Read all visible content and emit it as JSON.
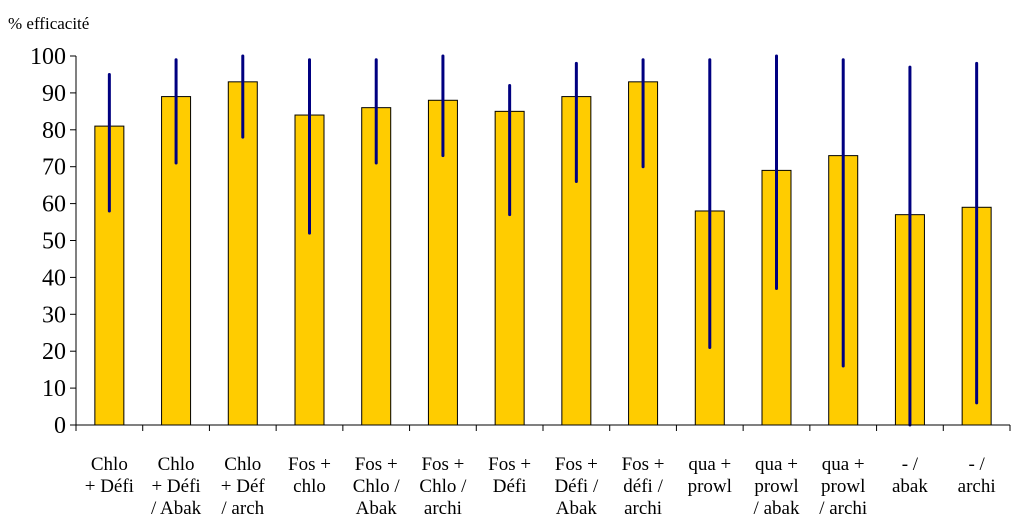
{
  "chart_data": {
    "type": "bar",
    "title": "",
    "xlabel": "",
    "ylabel": "% efficacité",
    "ylim": [
      0,
      100
    ],
    "yticks": [
      0,
      10,
      20,
      30,
      40,
      50,
      60,
      70,
      80,
      90,
      100
    ],
    "grid": false,
    "legend": "none",
    "categories": [
      [
        "Chlo",
        "+ Défi"
      ],
      [
        "Chlo",
        "+ Défi",
        "/ Abak"
      ],
      [
        "Chlo",
        "+ Déf",
        "/ arch"
      ],
      [
        "Fos +",
        "chlo"
      ],
      [
        "Fos +",
        "Chlo /",
        "Abak"
      ],
      [
        "Fos +",
        "Chlo /",
        "archi"
      ],
      [
        "Fos +",
        "Défi"
      ],
      [
        "Fos +",
        "Défi /",
        "Abak"
      ],
      [
        "Fos +",
        "défi /",
        "archi"
      ],
      [
        "qua +",
        "prowl"
      ],
      [
        "qua +",
        "prowl",
        "/ abak"
      ],
      [
        "qua +",
        "prowl",
        "/ archi"
      ],
      [
        "- /",
        "abak"
      ],
      [
        "- /",
        "archi"
      ]
    ],
    "values": [
      81,
      89,
      93,
      84,
      86,
      88,
      85,
      89,
      93,
      58,
      69,
      73,
      57,
      59
    ],
    "error_low": [
      58,
      71,
      78,
      52,
      71,
      73,
      57,
      66,
      70,
      21,
      37,
      16,
      0,
      6
    ],
    "error_high": [
      95,
      99,
      100,
      99,
      99,
      100,
      92,
      98,
      99,
      99,
      100,
      99,
      97,
      98
    ],
    "colors": {
      "bar_fill": "#ffcc00",
      "bar_stroke": "#000000",
      "error_bar": "#000080",
      "axis": "#000000"
    }
  }
}
